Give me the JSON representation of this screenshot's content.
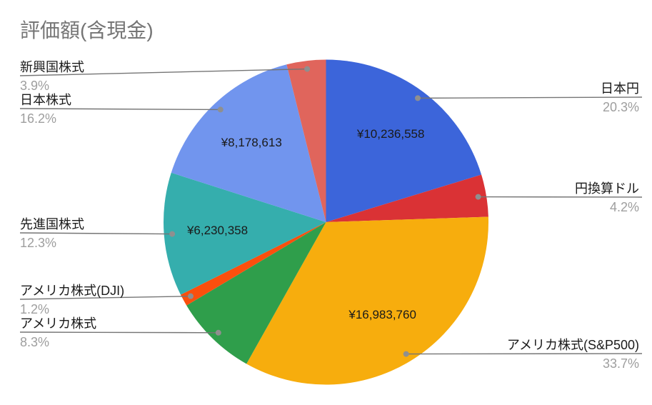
{
  "chart_data": {
    "type": "pie",
    "title": "評価額(含現金)",
    "legend": "none",
    "direction": "clockwise",
    "start_angle_deg": 0,
    "total_percent": 100.1,
    "colors": {
      "leader_line": "#757575",
      "callout_dot": "#8f8f8f",
      "slice_name_text": "#1a1a1a",
      "percent_text": "#9e9e9e",
      "title_text": "#757575",
      "value_text": "#1a1a1a"
    },
    "slices": [
      {
        "label": "日本円",
        "percent": 20.3,
        "percent_text": "20.3%",
        "value_text": "¥10,236,558",
        "color": "#3C65DA",
        "label_side": "right"
      },
      {
        "label": "円換算ドル",
        "percent": 4.2,
        "percent_text": "4.2%",
        "color": "#DA3235",
        "label_side": "right"
      },
      {
        "label": "アメリカ株式(S&P500)",
        "percent": 33.7,
        "percent_text": "33.7%",
        "value_text": "¥16,983,760",
        "color": "#F7AD0D",
        "label_side": "right"
      },
      {
        "label": "アメリカ株式",
        "percent": 8.3,
        "percent_text": "8.3%",
        "color": "#2F9E4B",
        "label_side": "left"
      },
      {
        "label": "アメリカ株式(DJI)",
        "percent": 1.2,
        "percent_text": "1.2%",
        "color": "#FB4F0D",
        "label_side": "left"
      },
      {
        "label": "先進国株式",
        "percent": 12.3,
        "percent_text": "12.3%",
        "value_text": "¥6,230,358",
        "color": "#35AEAD",
        "label_side": "left"
      },
      {
        "label": "日本株式",
        "percent": 16.2,
        "percent_text": "16.2%",
        "value_text": "¥8,178,613",
        "color": "#7195EE",
        "label_side": "left"
      },
      {
        "label": "新興国株式",
        "percent": 3.9,
        "percent_text": "3.9%",
        "color": "#E0655C",
        "label_side": "left"
      }
    ]
  }
}
